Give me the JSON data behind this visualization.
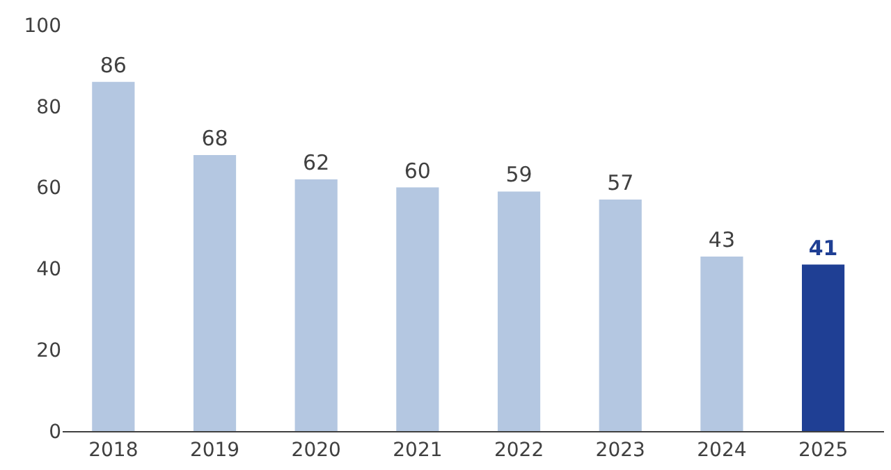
{
  "chart_data": {
    "type": "bar",
    "categories": [
      "2018",
      "2019",
      "2020",
      "2021",
      "2022",
      "2023",
      "2024",
      "2025"
    ],
    "values": [
      86,
      68,
      62,
      60,
      59,
      57,
      43,
      41
    ],
    "colors": [
      "#b4c7e1",
      "#b4c7e1",
      "#b4c7e1",
      "#b4c7e1",
      "#b4c7e1",
      "#b4c7e1",
      "#b4c7e1",
      "#1f3f94"
    ],
    "ylim": [
      0,
      100
    ],
    "yticks": [
      0,
      20,
      40,
      60,
      80,
      100
    ],
    "data_labels": true
  }
}
